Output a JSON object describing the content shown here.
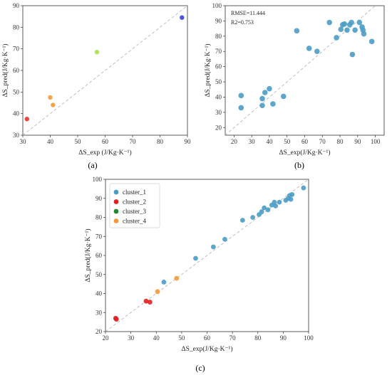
{
  "chart_data": [
    {
      "type": "scatter",
      "panel_label": "(a)",
      "xlabel": "ΔS_exp (J/Kg·K⁻¹)",
      "ylabel": "ΔS_pred(J/Kg·K⁻¹)",
      "xlim": [
        30,
        90
      ],
      "ylim": [
        30,
        90
      ],
      "xticks": [
        30,
        40,
        50,
        60,
        70,
        80,
        90
      ],
      "yticks": [
        30,
        40,
        50,
        60,
        70,
        80,
        90
      ],
      "grid": false,
      "diagonal": true,
      "points": [
        {
          "x": 31.5,
          "y": 37.5,
          "color": "#e8312a"
        },
        {
          "x": 40.0,
          "y": 47.5,
          "color": "#f49a3a"
        },
        {
          "x": 41.0,
          "y": 44.0,
          "color": "#f49a3a"
        },
        {
          "x": 57.0,
          "y": 68.5,
          "color": "#a6e04a"
        },
        {
          "x": 88.0,
          "y": 84.5,
          "color": "#3b3fd8"
        }
      ]
    },
    {
      "type": "scatter",
      "panel_label": "(b)",
      "xlabel": "ΔS_exp(J/Kg·K⁻¹)",
      "ylabel": "ΔS_pred(J/Kg·K⁻¹)",
      "xlim": [
        15,
        105
      ],
      "ylim": [
        15,
        100
      ],
      "xticks": [
        20,
        30,
        40,
        50,
        60,
        70,
        80,
        90,
        100
      ],
      "yticks": [
        20,
        30,
        40,
        50,
        60,
        70,
        80,
        90,
        100
      ],
      "grid": false,
      "diagonal": true,
      "annotations": [
        "RMSE=11.444",
        "R2=0.753"
      ],
      "color": "#4a9cc7",
      "points": [
        {
          "x": 24,
          "y": 41
        },
        {
          "x": 24,
          "y": 33
        },
        {
          "x": 36,
          "y": 39
        },
        {
          "x": 36,
          "y": 34.5
        },
        {
          "x": 37.5,
          "y": 43
        },
        {
          "x": 40,
          "y": 45.5
        },
        {
          "x": 42,
          "y": 35.5
        },
        {
          "x": 48,
          "y": 40.5
        },
        {
          "x": 55.5,
          "y": 83.5
        },
        {
          "x": 62.5,
          "y": 72
        },
        {
          "x": 67,
          "y": 70
        },
        {
          "x": 74,
          "y": 89
        },
        {
          "x": 78,
          "y": 79
        },
        {
          "x": 80.5,
          "y": 84.5
        },
        {
          "x": 81.5,
          "y": 87.5
        },
        {
          "x": 82.5,
          "y": 88
        },
        {
          "x": 84,
          "y": 84
        },
        {
          "x": 85.5,
          "y": 87.5
        },
        {
          "x": 86.5,
          "y": 89
        },
        {
          "x": 87,
          "y": 68
        },
        {
          "x": 88.5,
          "y": 84
        },
        {
          "x": 91,
          "y": 89
        },
        {
          "x": 92.5,
          "y": 86
        },
        {
          "x": 93,
          "y": 84
        },
        {
          "x": 93.5,
          "y": 81.5
        },
        {
          "x": 98,
          "y": 76.5
        }
      ]
    },
    {
      "type": "scatter",
      "panel_label": "(c)",
      "xlabel": "ΔS_exp(J/Kg·K⁻¹)",
      "ylabel": "ΔS_pred(J/Kg·K⁻¹)",
      "xlim": [
        20,
        100
      ],
      "ylim": [
        20,
        100
      ],
      "xticks": [
        20,
        30,
        40,
        50,
        60,
        70,
        80,
        90,
        100
      ],
      "yticks": [
        20,
        30,
        40,
        50,
        60,
        70,
        80,
        90,
        100
      ],
      "grid": false,
      "diagonal": true,
      "legend": "top-left",
      "series": [
        {
          "name": "cluster_1",
          "color": "#4a9cc7",
          "points": [
            {
              "x": 43,
              "y": 46
            },
            {
              "x": 55.5,
              "y": 58.5
            },
            {
              "x": 62.5,
              "y": 64.5
            },
            {
              "x": 67,
              "y": 68.5
            },
            {
              "x": 74,
              "y": 78.5
            },
            {
              "x": 78,
              "y": 80
            },
            {
              "x": 80.5,
              "y": 81.5
            },
            {
              "x": 81.5,
              "y": 83
            },
            {
              "x": 82.5,
              "y": 85
            },
            {
              "x": 84,
              "y": 84
            },
            {
              "x": 85.5,
              "y": 86.5
            },
            {
              "x": 86.5,
              "y": 88
            },
            {
              "x": 87,
              "y": 86
            },
            {
              "x": 88.5,
              "y": 88
            },
            {
              "x": 91,
              "y": 89
            },
            {
              "x": 92,
              "y": 90
            },
            {
              "x": 92.5,
              "y": 91.5
            },
            {
              "x": 93,
              "y": 89.5
            },
            {
              "x": 93.5,
              "y": 92
            },
            {
              "x": 98,
              "y": 95.5
            }
          ]
        },
        {
          "name": "cluster_2",
          "color": "#e02020",
          "points": [
            {
              "x": 24,
              "y": 27
            },
            {
              "x": 24.3,
              "y": 26.5
            },
            {
              "x": 36,
              "y": 36
            },
            {
              "x": 37.5,
              "y": 35.5
            }
          ]
        },
        {
          "name": "cluster_3",
          "color": "#1f8a2a",
          "points": []
        },
        {
          "name": "cluster_4",
          "color": "#f49a3a",
          "points": [
            {
              "x": 40.5,
              "y": 41
            },
            {
              "x": 48,
              "y": 48
            }
          ]
        }
      ]
    }
  ]
}
